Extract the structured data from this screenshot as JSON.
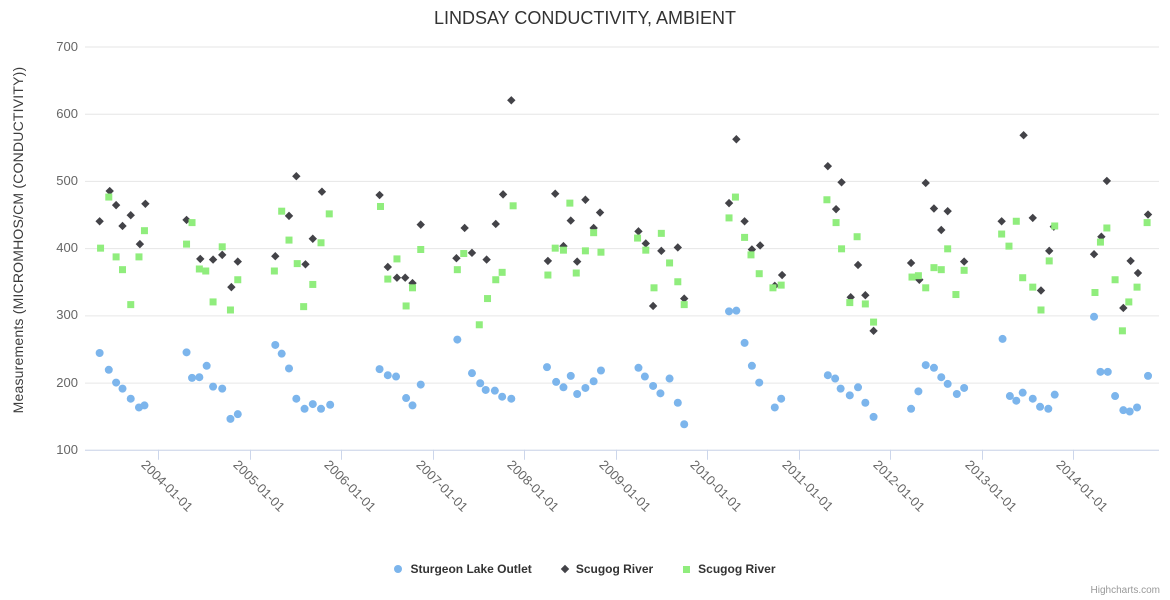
{
  "header": {
    "title": "LINDSAY CONDUCTIVITY, AMBIENT"
  },
  "y_axis": {
    "title": "Measurements (MICROMHOS/CM (CONDUCTIVITY))",
    "tick_labels": [
      "700",
      "600",
      "500",
      "400",
      "300",
      "200",
      "100"
    ]
  },
  "x_axis": {
    "tick_labels": [
      "2004-01-01",
      "2005-01-01",
      "2006-01-01",
      "2007-01-01",
      "2008-01-01",
      "2009-01-01",
      "2010-01-01",
      "2011-01-01",
      "2012-01-01",
      "2013-01-01",
      "2014-01-01"
    ]
  },
  "legend": {
    "items": [
      {
        "label": "Sturgeon Lake Outlet",
        "marker": "circle",
        "color": "#7cb5ec"
      },
      {
        "label": "Scugog River",
        "marker": "diamond",
        "color": "#434348"
      },
      {
        "label": "Scugog River",
        "marker": "square",
        "color": "#90ed7d"
      }
    ]
  },
  "credit": {
    "label": "Highcharts.com"
  },
  "colors": {
    "grid": "#e6e6e6",
    "axis_line": "#ccd6eb",
    "tick_text": "#666666",
    "title_text": "#333333",
    "credit_text": "#999999"
  },
  "chart_data": {
    "type": "scatter",
    "title": "LINDSAY CONDUCTIVITY, AMBIENT",
    "xlabel": "",
    "ylabel": "Measurements (MICROMHOS/CM (CONDUCTIVITY))",
    "x_unit": "decimal_year",
    "xlim": [
      2003.2,
      2014.94
    ],
    "ylim": [
      100,
      700
    ],
    "y_ticks": [
      100,
      200,
      300,
      400,
      500,
      600,
      700
    ],
    "x_tick_years": [
      2004,
      2005,
      2006,
      2007,
      2008,
      2009,
      2010,
      2011,
      2012,
      2013,
      2014
    ],
    "grid": true,
    "legend_position": "bottom",
    "series": [
      {
        "name": "Sturgeon Lake Outlet",
        "marker": "circle",
        "color": "#7cb5ec",
        "points": [
          [
            2003.36,
            244
          ],
          [
            2003.46,
            219
          ],
          [
            2003.54,
            200
          ],
          [
            2003.61,
            191
          ],
          [
            2003.7,
            176
          ],
          [
            2003.79,
            163
          ],
          [
            2003.85,
            166
          ],
          [
            2004.31,
            245
          ],
          [
            2004.37,
            207
          ],
          [
            2004.45,
            208
          ],
          [
            2004.53,
            225
          ],
          [
            2004.6,
            194
          ],
          [
            2004.7,
            191
          ],
          [
            2004.79,
            146
          ],
          [
            2004.87,
            153
          ],
          [
            2005.28,
            256
          ],
          [
            2005.35,
            243
          ],
          [
            2005.43,
            221
          ],
          [
            2005.51,
            176
          ],
          [
            2005.6,
            161
          ],
          [
            2005.69,
            168
          ],
          [
            2005.78,
            161
          ],
          [
            2005.88,
            167
          ],
          [
            2006.42,
            220
          ],
          [
            2006.51,
            211
          ],
          [
            2006.6,
            209
          ],
          [
            2006.71,
            177
          ],
          [
            2006.78,
            166
          ],
          [
            2006.87,
            197
          ],
          [
            2007.27,
            264
          ],
          [
            2007.43,
            214
          ],
          [
            2007.52,
            199
          ],
          [
            2007.58,
            189
          ],
          [
            2007.68,
            188
          ],
          [
            2007.76,
            179
          ],
          [
            2007.86,
            176
          ],
          [
            2008.25,
            223
          ],
          [
            2008.35,
            201
          ],
          [
            2008.43,
            193
          ],
          [
            2008.51,
            210
          ],
          [
            2008.58,
            183
          ],
          [
            2008.67,
            192
          ],
          [
            2008.76,
            202
          ],
          [
            2008.84,
            218
          ],
          [
            2009.25,
            222
          ],
          [
            2009.32,
            209
          ],
          [
            2009.41,
            195
          ],
          [
            2009.49,
            184
          ],
          [
            2009.59,
            206
          ],
          [
            2009.68,
            170
          ],
          [
            2009.75,
            138
          ],
          [
            2010.24,
            306
          ],
          [
            2010.32,
            307
          ],
          [
            2010.41,
            259
          ],
          [
            2010.49,
            225
          ],
          [
            2010.57,
            200
          ],
          [
            2010.74,
            163
          ],
          [
            2010.81,
            176
          ],
          [
            2011.32,
            211
          ],
          [
            2011.4,
            206
          ],
          [
            2011.46,
            191
          ],
          [
            2011.56,
            181
          ],
          [
            2011.65,
            193
          ],
          [
            2011.73,
            170
          ],
          [
            2011.82,
            149
          ],
          [
            2012.23,
            161
          ],
          [
            2012.31,
            187
          ],
          [
            2012.39,
            226
          ],
          [
            2012.48,
            222
          ],
          [
            2012.56,
            208
          ],
          [
            2012.63,
            198
          ],
          [
            2012.73,
            183
          ],
          [
            2012.81,
            192
          ],
          [
            2013.23,
            265
          ],
          [
            2013.31,
            180
          ],
          [
            2013.38,
            173
          ],
          [
            2013.45,
            185
          ],
          [
            2013.56,
            176
          ],
          [
            2013.64,
            164
          ],
          [
            2013.73,
            161
          ],
          [
            2013.8,
            182
          ],
          [
            2014.23,
            298
          ],
          [
            2014.3,
            216
          ],
          [
            2014.38,
            216
          ],
          [
            2014.46,
            180
          ],
          [
            2014.55,
            159
          ],
          [
            2014.62,
            157
          ],
          [
            2014.7,
            163
          ],
          [
            2014.82,
            210
          ]
        ]
      },
      {
        "name": "Scugog River",
        "marker": "diamond",
        "color": "#434348",
        "points": [
          [
            2003.36,
            440
          ],
          [
            2003.47,
            485
          ],
          [
            2003.54,
            464
          ],
          [
            2003.61,
            433
          ],
          [
            2003.7,
            449
          ],
          [
            2003.8,
            406
          ],
          [
            2003.86,
            466
          ],
          [
            2004.31,
            442
          ],
          [
            2004.46,
            384
          ],
          [
            2004.6,
            383
          ],
          [
            2004.7,
            390
          ],
          [
            2004.8,
            342
          ],
          [
            2004.87,
            380
          ],
          [
            2005.28,
            388
          ],
          [
            2005.43,
            448
          ],
          [
            2005.51,
            507
          ],
          [
            2005.61,
            376
          ],
          [
            2005.69,
            414
          ],
          [
            2005.79,
            484
          ],
          [
            2006.42,
            479
          ],
          [
            2006.51,
            372
          ],
          [
            2006.61,
            356
          ],
          [
            2006.7,
            356
          ],
          [
            2006.78,
            348
          ],
          [
            2006.87,
            435
          ],
          [
            2007.26,
            385
          ],
          [
            2007.35,
            430
          ],
          [
            2007.43,
            393
          ],
          [
            2007.59,
            383
          ],
          [
            2007.69,
            436
          ],
          [
            2007.77,
            480
          ],
          [
            2007.86,
            620
          ],
          [
            2008.26,
            381
          ],
          [
            2008.34,
            481
          ],
          [
            2008.43,
            403
          ],
          [
            2008.51,
            441
          ],
          [
            2008.58,
            380
          ],
          [
            2008.67,
            472
          ],
          [
            2008.76,
            430
          ],
          [
            2008.83,
            453
          ],
          [
            2009.25,
            425
          ],
          [
            2009.33,
            407
          ],
          [
            2009.41,
            314
          ],
          [
            2009.5,
            396
          ],
          [
            2009.68,
            401
          ],
          [
            2009.75,
            325
          ],
          [
            2010.24,
            467
          ],
          [
            2010.32,
            562
          ],
          [
            2010.41,
            440
          ],
          [
            2010.49,
            398
          ],
          [
            2010.58,
            404
          ],
          [
            2010.74,
            344
          ],
          [
            2010.82,
            360
          ],
          [
            2011.32,
            522
          ],
          [
            2011.41,
            458
          ],
          [
            2011.47,
            498
          ],
          [
            2011.57,
            327
          ],
          [
            2011.65,
            375
          ],
          [
            2011.73,
            330
          ],
          [
            2011.82,
            277
          ],
          [
            2012.23,
            378
          ],
          [
            2012.32,
            353
          ],
          [
            2012.39,
            497
          ],
          [
            2012.48,
            459
          ],
          [
            2012.56,
            427
          ],
          [
            2012.63,
            455
          ],
          [
            2012.81,
            380
          ],
          [
            2013.22,
            440
          ],
          [
            2013.46,
            568
          ],
          [
            2013.56,
            445
          ],
          [
            2013.65,
            337
          ],
          [
            2013.74,
            396
          ],
          [
            2013.79,
            432
          ],
          [
            2014.23,
            391
          ],
          [
            2014.31,
            417
          ],
          [
            2014.37,
            500
          ],
          [
            2014.55,
            311
          ],
          [
            2014.63,
            381
          ],
          [
            2014.71,
            363
          ],
          [
            2014.82,
            450
          ]
        ]
      },
      {
        "name": "Scugog River",
        "marker": "square",
        "color": "#90ed7d",
        "points": [
          [
            2003.37,
            400
          ],
          [
            2003.46,
            476
          ],
          [
            2003.54,
            387
          ],
          [
            2003.61,
            368
          ],
          [
            2003.7,
            316
          ],
          [
            2003.79,
            387
          ],
          [
            2003.85,
            426
          ],
          [
            2004.31,
            406
          ],
          [
            2004.37,
            438
          ],
          [
            2004.45,
            369
          ],
          [
            2004.52,
            366
          ],
          [
            2004.6,
            320
          ],
          [
            2004.7,
            402
          ],
          [
            2004.79,
            308
          ],
          [
            2004.87,
            353
          ],
          [
            2005.27,
            366
          ],
          [
            2005.35,
            455
          ],
          [
            2005.43,
            412
          ],
          [
            2005.52,
            377
          ],
          [
            2005.59,
            313
          ],
          [
            2005.69,
            346
          ],
          [
            2005.78,
            408
          ],
          [
            2005.87,
            451
          ],
          [
            2006.43,
            462
          ],
          [
            2006.51,
            354
          ],
          [
            2006.61,
            384
          ],
          [
            2006.71,
            314
          ],
          [
            2006.78,
            341
          ],
          [
            2006.87,
            398
          ],
          [
            2007.27,
            368
          ],
          [
            2007.34,
            392
          ],
          [
            2007.51,
            286
          ],
          [
            2007.6,
            325
          ],
          [
            2007.69,
            353
          ],
          [
            2007.76,
            364
          ],
          [
            2007.88,
            463
          ],
          [
            2008.26,
            360
          ],
          [
            2008.34,
            400
          ],
          [
            2008.43,
            397
          ],
          [
            2008.5,
            467
          ],
          [
            2008.57,
            363
          ],
          [
            2008.67,
            396
          ],
          [
            2008.76,
            423
          ],
          [
            2008.84,
            394
          ],
          [
            2009.24,
            415
          ],
          [
            2009.33,
            397
          ],
          [
            2009.42,
            341
          ],
          [
            2009.5,
            422
          ],
          [
            2009.59,
            378
          ],
          [
            2009.68,
            350
          ],
          [
            2009.75,
            316
          ],
          [
            2010.24,
            445
          ],
          [
            2010.31,
            476
          ],
          [
            2010.41,
            416
          ],
          [
            2010.48,
            390
          ],
          [
            2010.57,
            362
          ],
          [
            2010.72,
            341
          ],
          [
            2010.81,
            345
          ],
          [
            2011.31,
            472
          ],
          [
            2011.41,
            438
          ],
          [
            2011.47,
            399
          ],
          [
            2011.56,
            319
          ],
          [
            2011.64,
            417
          ],
          [
            2011.73,
            317
          ],
          [
            2011.82,
            290
          ],
          [
            2012.24,
            357
          ],
          [
            2012.31,
            359
          ],
          [
            2012.39,
            341
          ],
          [
            2012.48,
            371
          ],
          [
            2012.56,
            368
          ],
          [
            2012.63,
            399
          ],
          [
            2012.72,
            331
          ],
          [
            2012.81,
            367
          ],
          [
            2013.22,
            421
          ],
          [
            2013.3,
            403
          ],
          [
            2013.38,
            440
          ],
          [
            2013.45,
            356
          ],
          [
            2013.56,
            342
          ],
          [
            2013.65,
            308
          ],
          [
            2013.74,
            381
          ],
          [
            2013.8,
            433
          ],
          [
            2014.24,
            334
          ],
          [
            2014.3,
            409
          ],
          [
            2014.37,
            430
          ],
          [
            2014.46,
            353
          ],
          [
            2014.54,
            277
          ],
          [
            2014.61,
            320
          ],
          [
            2014.7,
            342
          ],
          [
            2014.81,
            438
          ]
        ]
      }
    ]
  }
}
